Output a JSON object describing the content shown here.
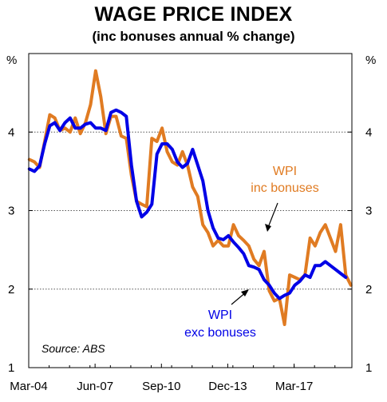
{
  "chart_data": {
    "type": "line",
    "title": "WAGE PRICE INDEX",
    "subtitle": "(inc bonuses annual % change)",
    "y_unit_left": "%",
    "y_unit_right": "%",
    "ylim": [
      1,
      5
    ],
    "yticks": [
      "1",
      "2",
      "3",
      "4"
    ],
    "xlim": [
      2004.17,
      2020.0
    ],
    "xticks": [
      {
        "label": "Mar-04",
        "x": 2004.17
      },
      {
        "label": "Jun-07",
        "x": 2007.42
      },
      {
        "label": "Sep-10",
        "x": 2010.67
      },
      {
        "label": "Dec-13",
        "x": 2013.92
      },
      {
        "label": "Mar-17",
        "x": 2017.17
      }
    ],
    "grid": "horizontal dotted at 2, 3, 4",
    "source": "Source: ABS",
    "annotations": {
      "inc": [
        "WPI",
        "inc bonuses"
      ],
      "exc": [
        "WPI",
        "exc bonuses"
      ]
    },
    "series": [
      {
        "name": "WPI exc bonuses",
        "color": "#0000e6",
        "points": [
          [
            2004.2,
            3.53
          ],
          [
            2004.45,
            3.5
          ],
          [
            2004.7,
            3.57
          ],
          [
            2004.95,
            3.85
          ],
          [
            2005.2,
            4.08
          ],
          [
            2005.45,
            4.12
          ],
          [
            2005.7,
            4.02
          ],
          [
            2005.95,
            4.12
          ],
          [
            2006.2,
            4.18
          ],
          [
            2006.45,
            4.05
          ],
          [
            2006.7,
            4.05
          ],
          [
            2006.95,
            4.1
          ],
          [
            2007.2,
            4.12
          ],
          [
            2007.45,
            4.05
          ],
          [
            2007.7,
            4.05
          ],
          [
            2007.95,
            4.02
          ],
          [
            2008.2,
            4.25
          ],
          [
            2008.45,
            4.28
          ],
          [
            2008.7,
            4.25
          ],
          [
            2008.95,
            4.2
          ],
          [
            2009.2,
            3.58
          ],
          [
            2009.45,
            3.12
          ],
          [
            2009.7,
            2.92
          ],
          [
            2009.95,
            2.98
          ],
          [
            2010.2,
            3.08
          ],
          [
            2010.45,
            3.72
          ],
          [
            2010.7,
            3.85
          ],
          [
            2010.95,
            3.85
          ],
          [
            2011.2,
            3.78
          ],
          [
            2011.45,
            3.62
          ],
          [
            2011.7,
            3.55
          ],
          [
            2011.95,
            3.6
          ],
          [
            2012.2,
            3.78
          ],
          [
            2012.45,
            3.58
          ],
          [
            2012.7,
            3.38
          ],
          [
            2012.95,
            3.0
          ],
          [
            2013.2,
            2.78
          ],
          [
            2013.45,
            2.65
          ],
          [
            2013.7,
            2.63
          ],
          [
            2013.95,
            2.68
          ],
          [
            2014.2,
            2.6
          ],
          [
            2014.45,
            2.53
          ],
          [
            2014.7,
            2.45
          ],
          [
            2014.95,
            2.3
          ],
          [
            2015.2,
            2.28
          ],
          [
            2015.45,
            2.25
          ],
          [
            2015.7,
            2.12
          ],
          [
            2015.95,
            2.05
          ],
          [
            2016.2,
            1.95
          ],
          [
            2016.45,
            1.88
          ],
          [
            2016.7,
            1.92
          ],
          [
            2016.95,
            1.95
          ],
          [
            2017.2,
            2.05
          ],
          [
            2017.45,
            2.1
          ],
          [
            2017.7,
            2.18
          ],
          [
            2017.95,
            2.15
          ],
          [
            2018.2,
            2.3
          ],
          [
            2018.45,
            2.3
          ],
          [
            2018.7,
            2.35
          ],
          [
            2018.95,
            2.3
          ],
          [
            2019.2,
            2.25
          ],
          [
            2019.45,
            2.2
          ],
          [
            2019.7,
            2.15
          ]
        ]
      },
      {
        "name": "WPI inc bonuses",
        "color": "#e07b22",
        "points": [
          [
            2004.2,
            3.65
          ],
          [
            2004.45,
            3.62
          ],
          [
            2004.7,
            3.55
          ],
          [
            2004.95,
            3.88
          ],
          [
            2005.2,
            4.22
          ],
          [
            2005.45,
            4.18
          ],
          [
            2005.7,
            4.02
          ],
          [
            2005.95,
            4.05
          ],
          [
            2006.2,
            4.0
          ],
          [
            2006.45,
            4.18
          ],
          [
            2006.7,
            3.98
          ],
          [
            2006.95,
            4.12
          ],
          [
            2007.2,
            4.35
          ],
          [
            2007.45,
            4.78
          ],
          [
            2007.7,
            4.45
          ],
          [
            2007.95,
            3.98
          ],
          [
            2008.2,
            4.2
          ],
          [
            2008.45,
            4.2
          ],
          [
            2008.7,
            3.95
          ],
          [
            2008.95,
            3.92
          ],
          [
            2009.2,
            3.45
          ],
          [
            2009.45,
            3.12
          ],
          [
            2009.7,
            3.08
          ],
          [
            2009.95,
            3.05
          ],
          [
            2010.2,
            3.92
          ],
          [
            2010.45,
            3.88
          ],
          [
            2010.7,
            4.05
          ],
          [
            2010.95,
            3.75
          ],
          [
            2011.2,
            3.62
          ],
          [
            2011.45,
            3.58
          ],
          [
            2011.7,
            3.75
          ],
          [
            2011.95,
            3.58
          ],
          [
            2012.2,
            3.3
          ],
          [
            2012.45,
            3.18
          ],
          [
            2012.7,
            2.82
          ],
          [
            2012.95,
            2.72
          ],
          [
            2013.2,
            2.55
          ],
          [
            2013.45,
            2.62
          ],
          [
            2013.7,
            2.55
          ],
          [
            2013.95,
            2.55
          ],
          [
            2014.2,
            2.82
          ],
          [
            2014.45,
            2.68
          ],
          [
            2014.7,
            2.62
          ],
          [
            2014.95,
            2.55
          ],
          [
            2015.2,
            2.38
          ],
          [
            2015.45,
            2.3
          ],
          [
            2015.7,
            2.48
          ],
          [
            2015.95,
            1.98
          ],
          [
            2016.2,
            1.85
          ],
          [
            2016.45,
            1.88
          ],
          [
            2016.7,
            1.55
          ],
          [
            2016.95,
            2.18
          ],
          [
            2017.2,
            2.15
          ],
          [
            2017.45,
            2.12
          ],
          [
            2017.7,
            2.18
          ],
          [
            2017.95,
            2.65
          ],
          [
            2018.2,
            2.55
          ],
          [
            2018.45,
            2.72
          ],
          [
            2018.7,
            2.82
          ],
          [
            2018.95,
            2.65
          ],
          [
            2019.2,
            2.48
          ],
          [
            2019.45,
            2.82
          ],
          [
            2019.7,
            2.18
          ],
          [
            2019.95,
            2.05
          ]
        ]
      }
    ]
  }
}
